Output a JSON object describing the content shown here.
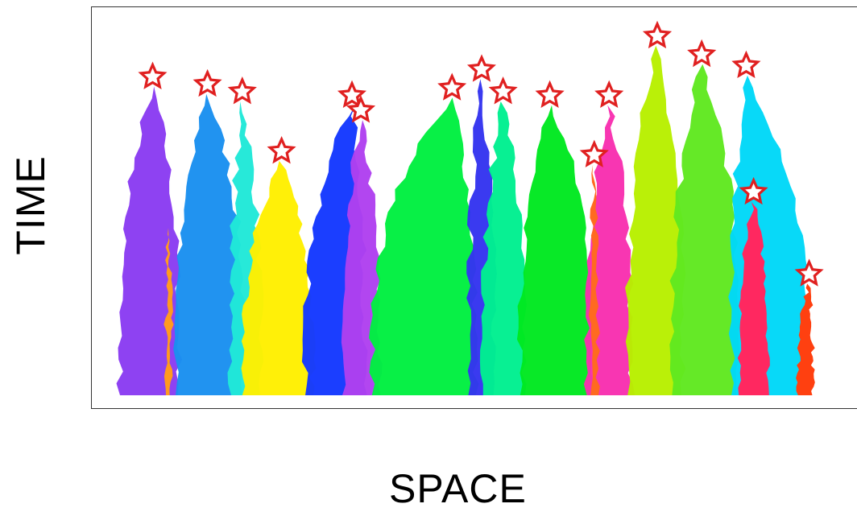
{
  "labels": {
    "x_axis": "SPACE",
    "y_axis": "TIME"
  },
  "lineages": [
    {
      "color": "#8a3cf2",
      "left": 0.0,
      "right": 0.08,
      "peak_x": 0.044,
      "peak_h": 0.83
    },
    {
      "color": "#1a90f0",
      "left": 0.075,
      "right": 0.168,
      "peak_x": 0.118,
      "peak_h": 0.81
    },
    {
      "color": "#20e8d8",
      "left": 0.15,
      "right": 0.19,
      "peak_x": 0.165,
      "peak_h": 0.79
    },
    {
      "color": "#fff000",
      "left": 0.165,
      "right": 0.26,
      "peak_x": 0.218,
      "peak_h": 0.63
    },
    {
      "color": "#1438ff",
      "left": 0.25,
      "right": 0.33,
      "peak_x": 0.313,
      "peak_h": 0.78
    },
    {
      "color": "#b040f0",
      "left": 0.3,
      "right": 0.35,
      "peak_x": 0.325,
      "peak_h": 0.74
    },
    {
      "color": "#00f040",
      "left": 0.34,
      "right": 0.48,
      "peak_x": 0.448,
      "peak_h": 0.8
    },
    {
      "color": "#3434f0",
      "left": 0.47,
      "right": 0.505,
      "peak_x": 0.488,
      "peak_h": 0.85
    },
    {
      "color": "#00f090",
      "left": 0.49,
      "right": 0.545,
      "peak_x": 0.517,
      "peak_h": 0.79
    },
    {
      "color": "#00e820",
      "left": 0.54,
      "right": 0.64,
      "peak_x": 0.58,
      "peak_h": 0.78
    },
    {
      "color": "#f830b0",
      "left": 0.63,
      "right": 0.69,
      "peak_x": 0.66,
      "peak_h": 0.78
    },
    {
      "color": "#b8f000",
      "left": 0.685,
      "right": 0.76,
      "peak_x": 0.725,
      "peak_h": 0.94
    },
    {
      "color": "#60e820",
      "left": 0.745,
      "right": 0.835,
      "peak_x": 0.785,
      "peak_h": 0.89
    },
    {
      "color": "#00d8f8",
      "left": 0.825,
      "right": 0.93,
      "peak_x": 0.845,
      "peak_h": 0.86
    }
  ],
  "inner_strands": [
    {
      "color": "#ff2860",
      "left": 0.835,
      "right": 0.875,
      "peak_x": 0.855,
      "peak_h": 0.52
    },
    {
      "color": "#ff4010",
      "left": 0.915,
      "right": 0.935,
      "peak_x": 0.93,
      "peak_h": 0.3
    },
    {
      "color": "#ff9a20",
      "left": 0.062,
      "right": 0.07,
      "peak_x": 0.066,
      "peak_h": 0.45
    },
    {
      "color": "#ff6a20",
      "left": 0.635,
      "right": 0.645,
      "peak_x": 0.64,
      "peak_h": 0.62
    }
  ],
  "marker_style": {
    "fill": "#ffffff",
    "stroke": "#e02020"
  },
  "marker_count": 17
}
